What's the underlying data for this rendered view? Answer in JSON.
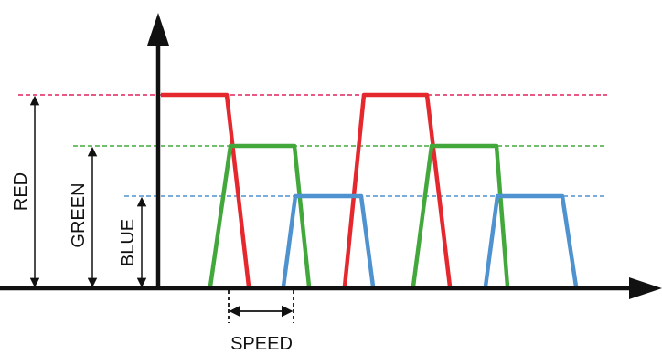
{
  "labels": {
    "red": "RED",
    "green": "GREEN",
    "blue": "BLUE",
    "speed": "SPEED"
  },
  "colors": {
    "red": "#e5282e",
    "green": "#43a83c",
    "blue": "#4f92d0",
    "axis": "#111111",
    "dashed_red": "#e0245e"
  }
}
